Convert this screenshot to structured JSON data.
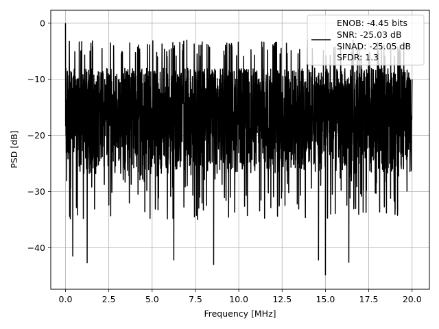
{
  "chart_data": {
    "type": "line",
    "xlabel": "Frequency [MHz]",
    "ylabel": "PSD [dB]",
    "xlim": [
      -0.85,
      21.0
    ],
    "ylim": [
      -47.4,
      2.3
    ],
    "xticks": [
      0.0,
      2.5,
      5.0,
      7.5,
      10.0,
      12.5,
      15.0,
      17.5,
      20.0
    ],
    "xtick_labels": [
      "0.0",
      "2.5",
      "5.0",
      "7.5",
      "10.0",
      "12.5",
      "15.0",
      "17.5",
      "20.0"
    ],
    "yticks": [
      0,
      -10,
      -20,
      -30,
      -40
    ],
    "ytick_labels": [
      "0",
      "−10",
      "−20",
      "−30",
      "−40"
    ],
    "grid": true,
    "legend": {
      "placement": "top-right",
      "entries": [
        "ENOB: -4.45 bits",
        "SNR: -25.03 dB",
        "SINAD: -25.05 dB",
        "SFDR: 1.3"
      ]
    },
    "series": [
      {
        "color": "#000000",
        "x_range": [
          0.0,
          20.0
        ],
        "description_values": {
          "peak": [
            0.0,
            0.0
          ],
          "typical_band_db": [
            -27,
            -8
          ],
          "upper_excursion_db": -3,
          "notable_minima": [
            [
              0.42,
              -41.5
            ],
            [
              1.25,
              -42.7
            ],
            [
              6.25,
              -42.2
            ],
            [
              8.55,
              -43.0
            ],
            [
              14.6,
              -42.2
            ],
            [
              15.0,
              -44.8
            ],
            [
              16.35,
              -42.6
            ]
          ]
        }
      }
    ]
  }
}
